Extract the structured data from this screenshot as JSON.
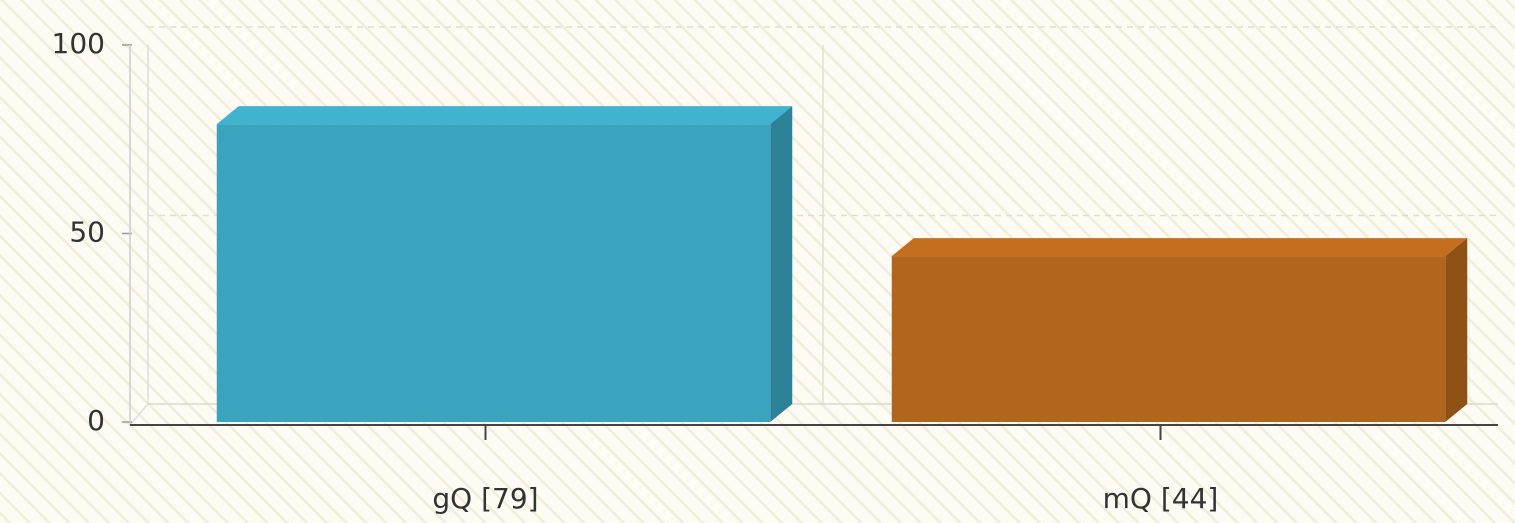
{
  "chart_data": {
    "type": "bar3d",
    "categories": [
      "gQ [79]",
      "mQ [44]"
    ],
    "values": [
      79,
      44
    ],
    "colors": [
      "#3aa3bd",
      "#b2651c"
    ],
    "ylim": [
      0,
      100
    ],
    "yticks": [
      0,
      50,
      100
    ],
    "grid": true
  }
}
